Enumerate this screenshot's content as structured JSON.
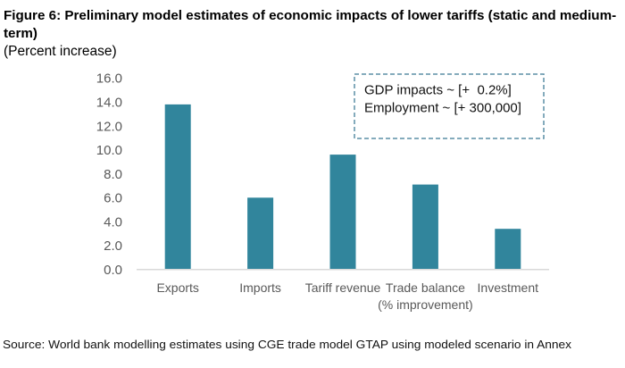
{
  "source": "Source: World bank modelling estimates using CGE trade model GTAP using modeled scenario in Annex",
  "colors": {
    "bar": "#31859C",
    "axis": "#D9D9D9",
    "label_text": "#595959",
    "annotation_border": "#5B8FA5"
  },
  "chart_data": {
    "type": "bar",
    "title": "Figure 6: Preliminary model estimates of economic impacts of lower tariffs (static and medium-term)",
    "subtitle": "(Percent increase)",
    "xlabel": "",
    "ylabel": "Percent increase",
    "categories": [
      "Exports",
      "Imports",
      "Tariff revenue",
      "Trade balance (% improvement)",
      "Investment"
    ],
    "x_labels": [
      {
        "lines": [
          "Exports"
        ]
      },
      {
        "lines": [
          "Imports"
        ]
      },
      {
        "lines": [
          "Tariff revenue"
        ]
      },
      {
        "lines": [
          "Trade balance",
          "(% improvement)"
        ]
      },
      {
        "lines": [
          "Investment"
        ]
      }
    ],
    "values": [
      13.8,
      6.0,
      9.6,
      7.1,
      3.4
    ],
    "ylim": [
      0,
      16
    ],
    "yticks": [
      0,
      2,
      4,
      6,
      8,
      10,
      12,
      14,
      16
    ],
    "ytick_labels": [
      "0.0",
      "2.0",
      "4.0",
      "6.0",
      "8.0",
      "10.0",
      "12.0",
      "14.0",
      "16.0"
    ],
    "grid": false,
    "legend": null,
    "annotation": {
      "lines": [
        "GDP impacts ~ [+  0.2%]",
        "Employment ~ [+ 300,000]"
      ],
      "placement": "top-right"
    }
  }
}
